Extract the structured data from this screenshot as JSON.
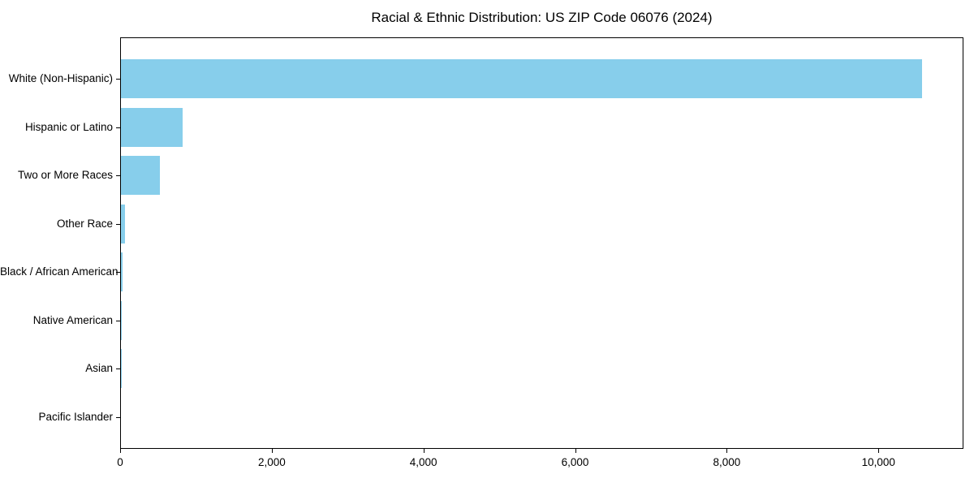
{
  "chart_data": {
    "type": "bar",
    "orientation": "horizontal",
    "title": "Racial & Ethnic Distribution: US ZIP Code 06076 (2024)",
    "categories": [
      "White (Non-Hispanic)",
      "Hispanic or Latino",
      "Two or More Races",
      "Other Race",
      "Black / African American",
      "Native American",
      "Asian",
      "Pacific Islander"
    ],
    "values": [
      10560,
      815,
      510,
      50,
      20,
      10,
      5,
      0
    ],
    "bar_color": "#87CEEB",
    "xlim": [
      0,
      11100
    ],
    "x_ticks": [
      0,
      2000,
      4000,
      6000,
      8000,
      10000
    ],
    "x_tick_labels": [
      "0",
      "2,000",
      "4,000",
      "6,000",
      "8,000",
      "10,000"
    ],
    "xlabel": "",
    "ylabel": "",
    "grid": false,
    "legend_position": "none",
    "background_color": "#ffffff",
    "text_color": "#000000",
    "spine_color": "#000000"
  }
}
